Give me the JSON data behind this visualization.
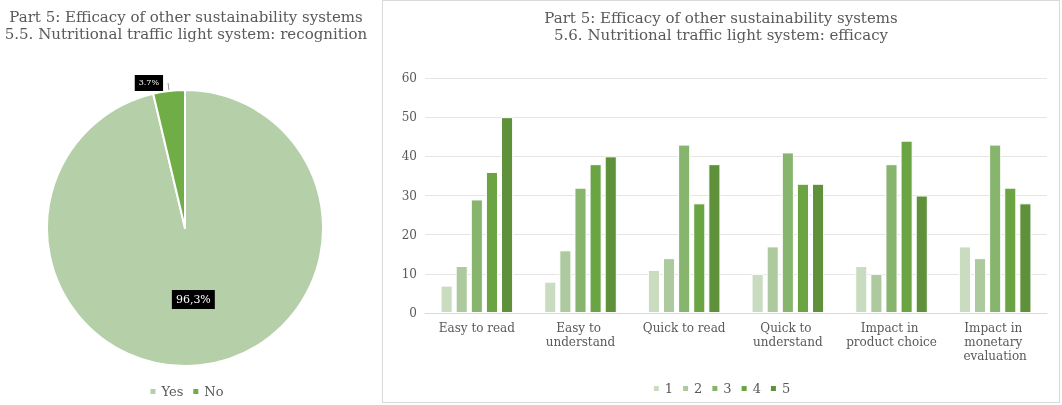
{
  "chart_data": [
    {
      "type": "pie",
      "title": "Part 5: Efficacy of other sustainability systems",
      "subtitle": "5.5. Nutritional traffic light system: recognition",
      "categories": [
        "Yes",
        "No"
      ],
      "values": [
        96.3,
        3.7
      ],
      "value_labels": [
        "96,3%",
        "3.7%"
      ],
      "colors": [
        "#b5d0a8",
        "#70ad47"
      ],
      "legend": "bottom"
    },
    {
      "type": "bar",
      "title": "Part 5: Efficacy of other sustainability systems",
      "subtitle": "5.6. Nutritional traffic light system: efficacy",
      "categories": [
        "Easy to read",
        "Easy to understand",
        "Quick to read",
        "Quick to understand",
        "Impact in product choice",
        "Impact in monetary evaluation"
      ],
      "series": [
        {
          "name": "1",
          "color": "#c9dcc0",
          "values": [
            7,
            8,
            11,
            10,
            12,
            17
          ]
        },
        {
          "name": "2",
          "color": "#adca9e",
          "values": [
            12,
            16,
            14,
            17,
            10,
            14
          ]
        },
        {
          "name": "3",
          "color": "#88b56e",
          "values": [
            29,
            32,
            43,
            41,
            38,
            43
          ]
        },
        {
          "name": "4",
          "color": "#6aa443",
          "values": [
            36,
            38,
            28,
            33,
            44,
            32
          ]
        },
        {
          "name": "5",
          "color": "#5e913a",
          "values": [
            50,
            40,
            38,
            33,
            30,
            28
          ]
        }
      ],
      "ylim": [
        0,
        60
      ],
      "yticks": [
        0,
        10,
        20,
        30,
        40,
        50,
        60
      ],
      "grid": "y",
      "legend": "bottom"
    }
  ]
}
